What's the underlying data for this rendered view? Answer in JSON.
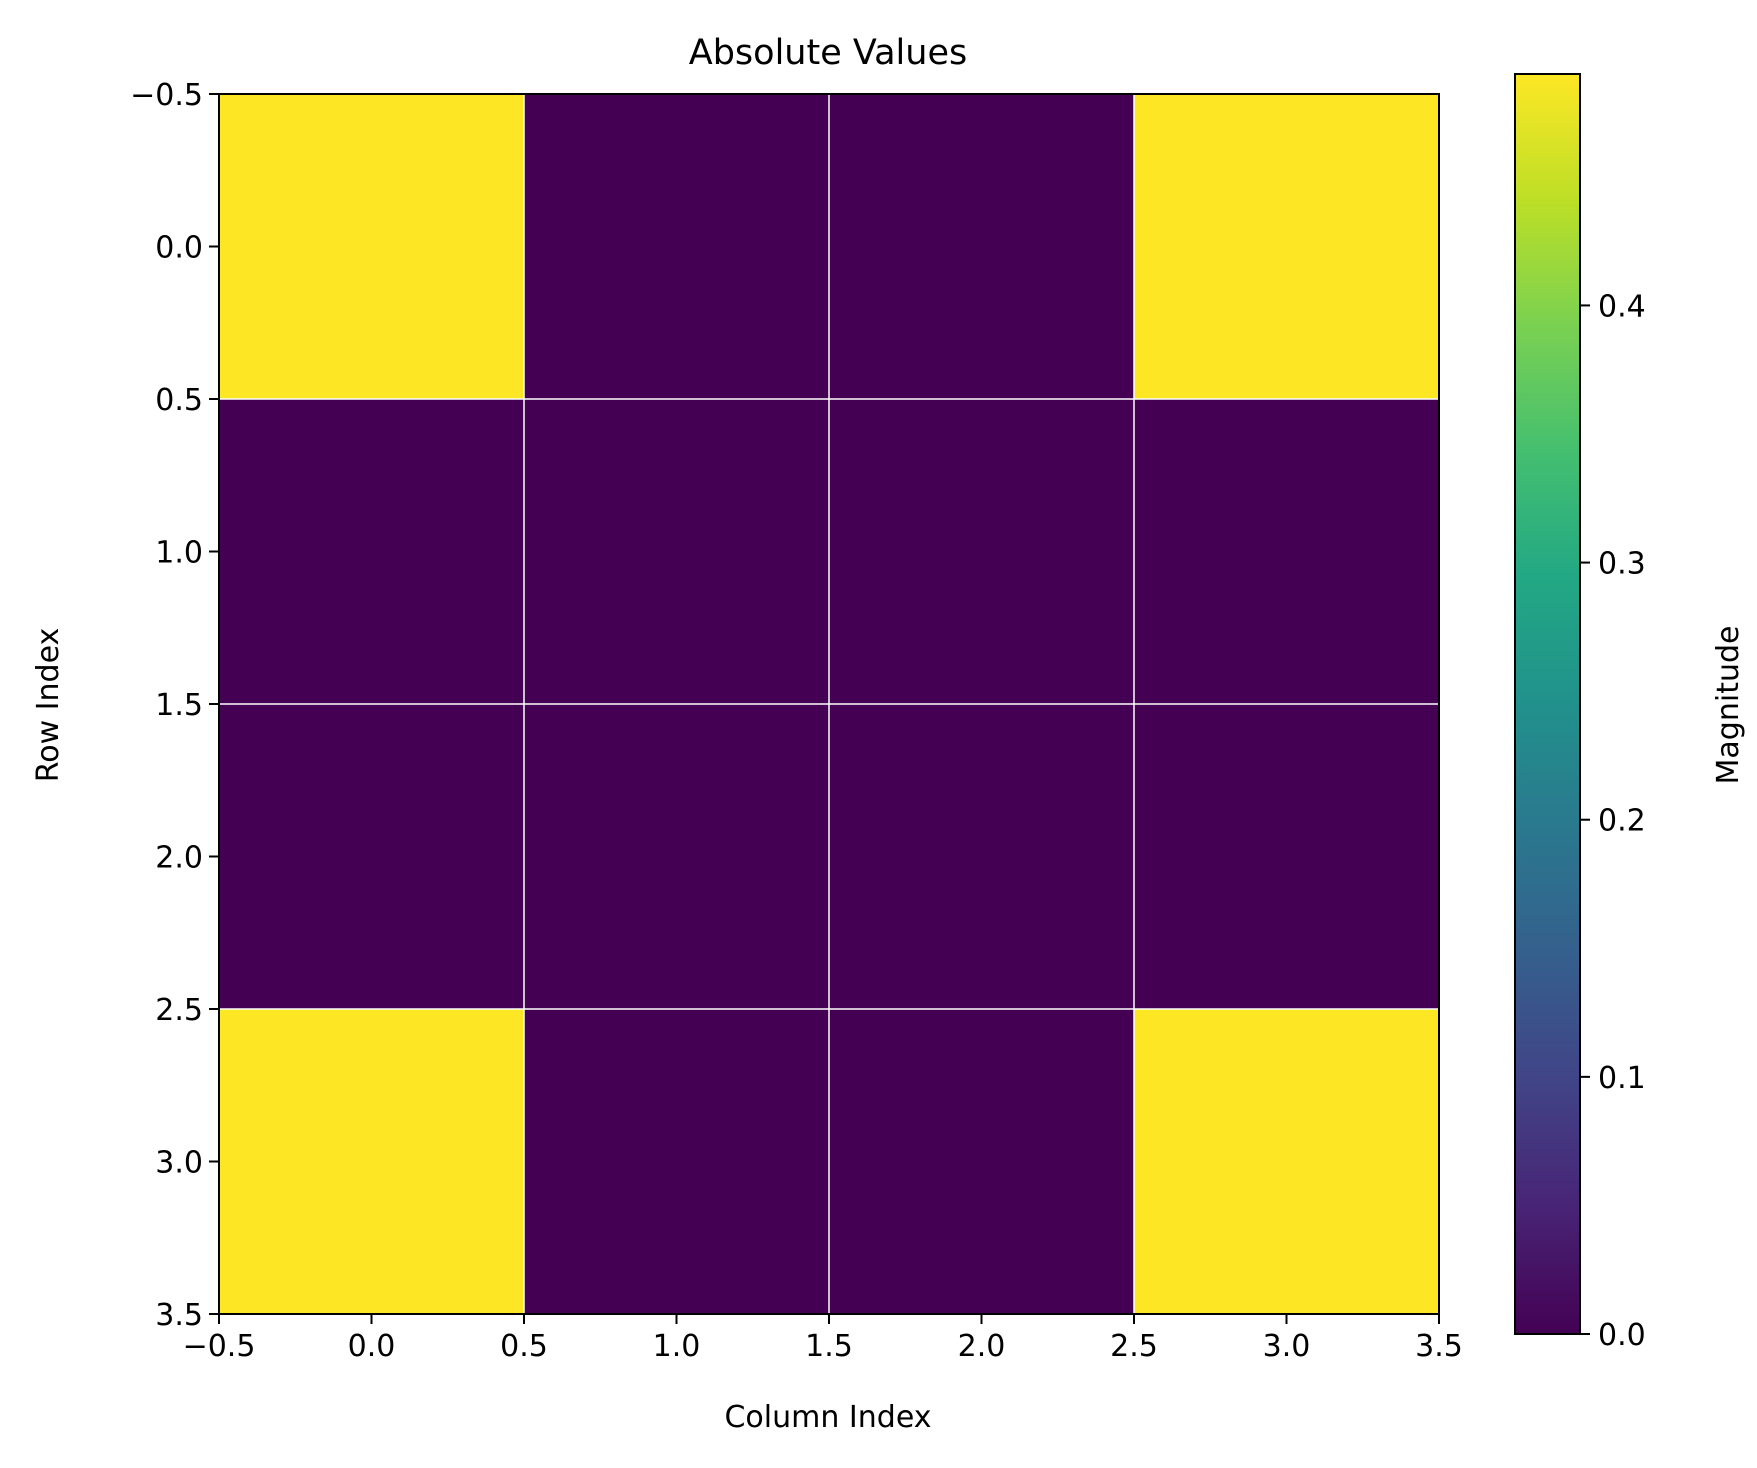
{
  "chart_data": {
    "type": "heatmap",
    "title": "Absolute Values",
    "xlabel": "Column Index",
    "ylabel": "Row Index",
    "xlim": [
      -0.5,
      3.5
    ],
    "ylim": [
      3.5,
      -0.5
    ],
    "xticks": [
      "−0.5",
      "0.0",
      "0.5",
      "1.0",
      "1.5",
      "2.0",
      "2.5",
      "3.0",
      "3.5"
    ],
    "yticks": [
      "−0.5",
      "0.0",
      "0.5",
      "1.0",
      "1.5",
      "2.0",
      "2.5",
      "3.0",
      "3.5"
    ],
    "values": [
      [
        0.49,
        0.0,
        0.0,
        0.49
      ],
      [
        0.0,
        0.0,
        0.0,
        0.0
      ],
      [
        0.0,
        0.0,
        0.0,
        0.0
      ],
      [
        0.49,
        0.0,
        0.0,
        0.49
      ]
    ],
    "grid": true,
    "colormap": "viridis",
    "colorbar": {
      "label": "Magnitude",
      "range": [
        0.0,
        0.49
      ],
      "ticks": [
        "0.0",
        "0.1",
        "0.2",
        "0.3",
        "0.4"
      ],
      "tick_values": [
        0.0,
        0.1,
        0.2,
        0.3,
        0.4
      ]
    }
  }
}
